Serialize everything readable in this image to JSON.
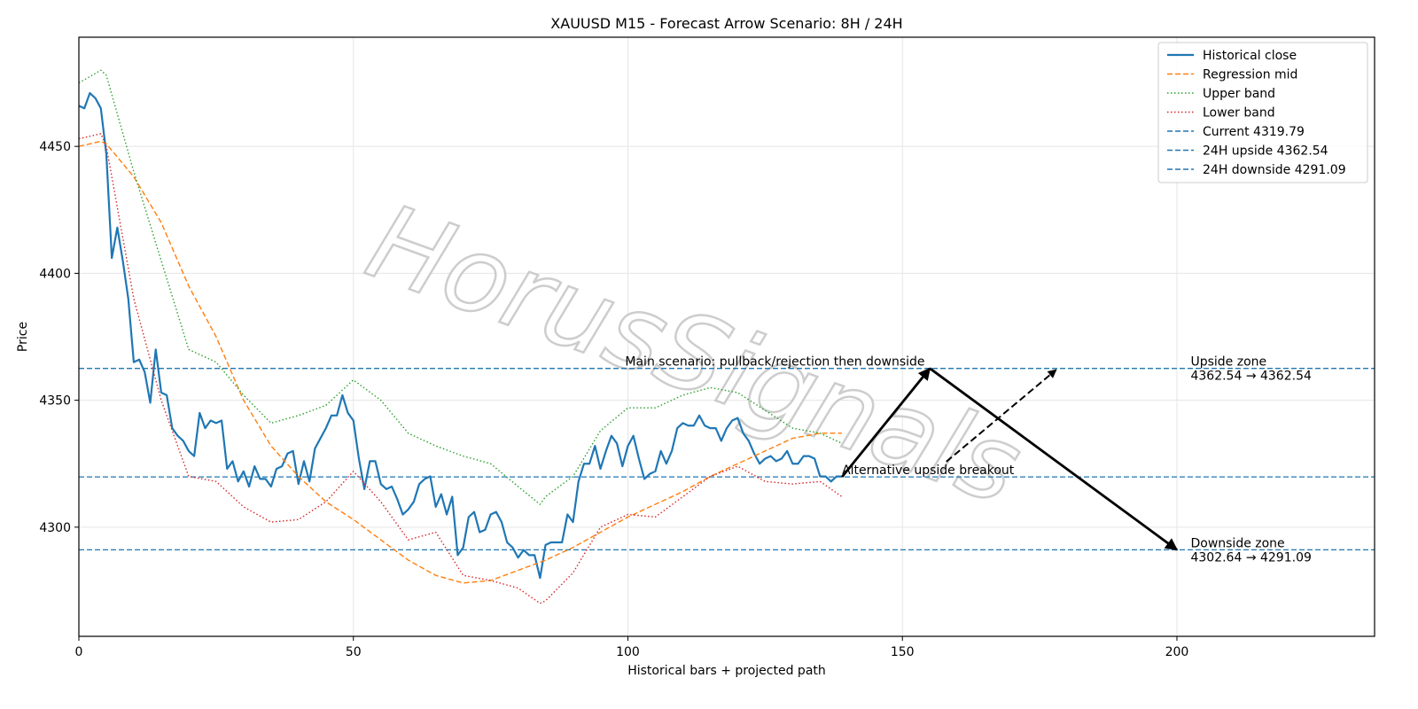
{
  "chart_data": {
    "type": "line",
    "title": "XAUUSD M15 - Forecast Arrow Scenario: 8H / 24H",
    "xlabel": "Historical bars + projected path",
    "ylabel": "Price",
    "watermark": "HorusSignals",
    "xlim": [
      0,
      236
    ],
    "ylim": [
      4257,
      4493
    ],
    "xticks": [
      0,
      50,
      100,
      150,
      200
    ],
    "yticks": [
      4300,
      4350,
      4400,
      4450
    ],
    "grid": true,
    "legend": "upper right",
    "series": [
      {
        "name": "Historical close",
        "color": "#1f77b4",
        "style": "solid",
        "x": [
          0,
          1,
          2,
          3,
          4,
          5,
          6,
          7,
          8,
          9,
          10,
          11,
          12,
          13,
          14,
          15,
          16,
          17,
          18,
          19,
          20,
          21,
          22,
          23,
          24,
          25,
          26,
          27,
          28,
          29,
          30,
          31,
          32,
          33,
          34,
          35,
          36,
          37,
          38,
          39,
          40,
          41,
          42,
          43,
          44,
          45,
          46,
          47,
          48,
          49,
          50,
          51,
          52,
          53,
          54,
          55,
          56,
          57,
          58,
          59,
          60,
          61,
          62,
          63,
          64,
          65,
          66,
          67,
          68,
          69,
          70,
          71,
          72,
          73,
          74,
          75,
          76,
          77,
          78,
          79,
          80,
          81,
          82,
          83,
          84,
          85,
          86,
          87,
          88,
          89,
          90,
          91,
          92,
          93,
          94,
          95,
          96,
          97,
          98,
          99,
          100,
          101,
          102,
          103,
          104,
          105,
          106,
          107,
          108,
          109,
          110,
          111,
          112,
          113,
          114,
          115,
          116,
          117,
          118,
          119,
          120,
          121,
          122,
          123,
          124,
          125,
          126,
          127,
          128,
          129,
          130,
          131,
          132,
          133,
          134,
          135,
          136,
          137,
          138,
          139
        ],
        "values": [
          4466,
          4465,
          4471,
          4469,
          4465,
          4447,
          4406,
          4418,
          4405,
          4390,
          4365,
          4366,
          4361,
          4349,
          4370,
          4353,
          4352,
          4339,
          4336,
          4334,
          4330,
          4328,
          4345,
          4339,
          4342,
          4341,
          4342,
          4323,
          4326,
          4318,
          4322,
          4316,
          4324,
          4319,
          4319,
          4316,
          4323,
          4324,
          4329,
          4330,
          4317,
          4326,
          4318,
          4331,
          4335,
          4339,
          4344,
          4344,
          4352,
          4345,
          4342,
          4327,
          4315,
          4326,
          4326,
          4317,
          4315,
          4316,
          4311,
          4305,
          4307,
          4310,
          4317,
          4319,
          4320,
          4308,
          4313,
          4305,
          4312,
          4289,
          4292,
          4304,
          4306,
          4298,
          4299,
          4305,
          4306,
          4302,
          4294,
          4292,
          4288,
          4291,
          4289,
          4289,
          4280,
          4293,
          4294,
          4294,
          4294,
          4305,
          4302,
          4318,
          4325,
          4325,
          4332,
          4323,
          4330,
          4336,
          4333,
          4324,
          4332,
          4336,
          4327,
          4319,
          4321,
          4322,
          4330,
          4325,
          4330,
          4339,
          4341,
          4340,
          4340,
          4344,
          4340,
          4339,
          4339,
          4334,
          4339,
          4342,
          4343,
          4337,
          4334,
          4329,
          4325,
          4327,
          4328,
          4326,
          4327,
          4330,
          4325,
          4325,
          4328,
          4328,
          4327,
          4320,
          4320,
          4318,
          4320,
          4320
        ]
      },
      {
        "name": "Regression mid",
        "color": "#ff7f0e",
        "style": "dashed",
        "x": [
          0,
          4,
          5,
          10,
          15,
          20,
          25,
          30,
          35,
          40,
          45,
          50,
          55,
          60,
          65,
          70,
          75,
          80,
          85,
          90,
          95,
          100,
          105,
          110,
          115,
          120,
          125,
          130,
          135,
          139
        ],
        "values": [
          4450,
          4452,
          4451,
          4438,
          4420,
          4395,
          4375,
          4350,
          4332,
          4320,
          4310,
          4303,
          4295,
          4287,
          4281,
          4278,
          4279,
          4283,
          4287,
          4292,
          4298,
          4304,
          4309,
          4314,
          4320,
          4325,
          4330,
          4335,
          4337,
          4337
        ]
      },
      {
        "name": "Upper band",
        "color": "#2ca02c",
        "style": "dotted",
        "x": [
          0,
          4,
          5,
          10,
          15,
          20,
          25,
          30,
          35,
          40,
          45,
          50,
          55,
          60,
          65,
          70,
          75,
          80,
          84,
          85,
          90,
          95,
          100,
          105,
          110,
          115,
          120,
          125,
          130,
          135,
          139
        ],
        "values": [
          4475,
          4480,
          4478,
          4440,
          4405,
          4370,
          4365,
          4352,
          4341,
          4344,
          4348,
          4358,
          4350,
          4337,
          4332,
          4328,
          4325,
          4316,
          4309,
          4312,
          4320,
          4338,
          4347,
          4347,
          4352,
          4355,
          4353,
          4346,
          4339,
          4337,
          4333
        ]
      },
      {
        "name": "Lower band",
        "color": "#d62728",
        "style": "dotted",
        "x": [
          0,
          4,
          5,
          10,
          15,
          20,
          25,
          30,
          35,
          40,
          45,
          50,
          55,
          60,
          65,
          70,
          75,
          80,
          84,
          85,
          90,
          95,
          100,
          105,
          110,
          115,
          120,
          125,
          130,
          135,
          139
        ],
        "values": [
          4453,
          4455,
          4450,
          4390,
          4350,
          4320,
          4318,
          4308,
          4302,
          4303,
          4310,
          4322,
          4310,
          4295,
          4298,
          4281,
          4279,
          4276,
          4270,
          4271,
          4282,
          4300,
          4305,
          4304,
          4312,
          4320,
          4324,
          4318,
          4317,
          4318,
          4312
        ]
      }
    ],
    "hlines": [
      {
        "name": "Current 4319.79",
        "value": 4319.79,
        "color": "#1f77b4"
      },
      {
        "name": "24H upside 4362.54",
        "value": 4362.54,
        "color": "#1f77b4"
      },
      {
        "name": "24H downside 4291.09",
        "value": 4291.09,
        "color": "#1f77b4"
      }
    ],
    "arrows": [
      {
        "from": [
          139,
          4319.79
        ],
        "to": [
          155,
          4362.54
        ],
        "style": "solid"
      },
      {
        "from": [
          155,
          4362.54
        ],
        "to": [
          200,
          4291.09
        ],
        "style": "solid"
      },
      {
        "from": [
          158,
          4325.8
        ],
        "to": [
          178,
          4362
        ],
        "style": "dashed"
      }
    ],
    "annotations": [
      {
        "lines": [
          "Main scenario: pullback/rejection then downside"
        ],
        "x": 99.5,
        "y": 4362.54
      },
      {
        "lines": [
          "Alternative upside breakout"
        ],
        "x": 139,
        "y": 4319.79
      },
      {
        "lines": [
          "Upside zone",
          "4362.54 → 4362.54"
        ],
        "x": 202.5,
        "y": 4362.54
      },
      {
        "lines": [
          "Downside zone",
          "4302.64 → 4291.09"
        ],
        "x": 202.5,
        "y": 4291.09
      }
    ]
  }
}
